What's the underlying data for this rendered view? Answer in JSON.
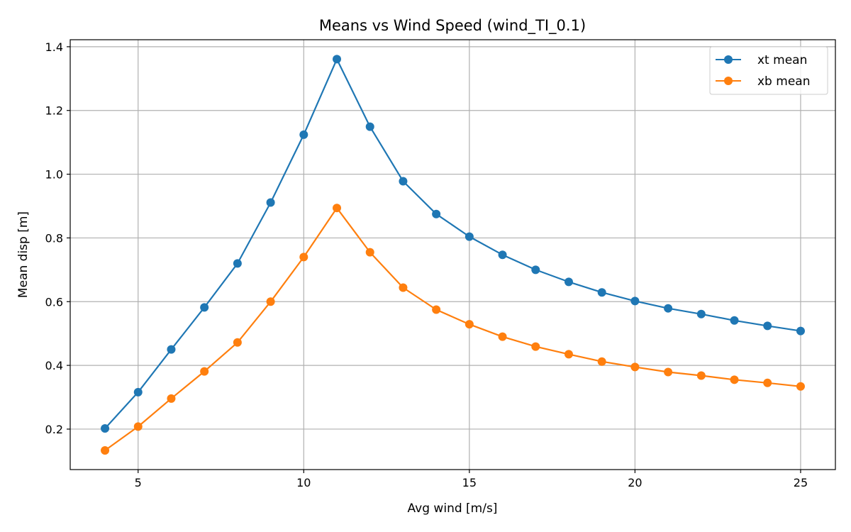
{
  "chart_data": {
    "type": "line",
    "title": "Means vs Wind Speed (wind_TI_0.1)",
    "xlabel": "Avg wind [m/s]",
    "ylabel": "Mean disp [m]",
    "xlim": [
      2.95,
      26.05
    ],
    "ylim": [
      0.073,
      1.422
    ],
    "xticks": [
      5,
      10,
      15,
      20,
      25
    ],
    "yticks": [
      0.2,
      0.4,
      0.6,
      0.8,
      1.0,
      1.2,
      1.4
    ],
    "xtick_labels": [
      "5",
      "10",
      "15",
      "20",
      "25"
    ],
    "ytick_labels": [
      "0.2",
      "0.4",
      "0.6",
      "0.8",
      "1.0",
      "1.2",
      "1.4"
    ],
    "grid": true,
    "legend_position": "top-right",
    "x": [
      4,
      5,
      6,
      7,
      8,
      9,
      10,
      11,
      12,
      13,
      14,
      15,
      16,
      17,
      18,
      19,
      20,
      21,
      22,
      23,
      24,
      25
    ],
    "series": [
      {
        "name": "xt mean",
        "color": "#1f77b4",
        "marker": "circle",
        "values": [
          0.202,
          0.316,
          0.45,
          0.582,
          0.72,
          0.911,
          1.124,
          1.361,
          1.149,
          0.978,
          0.875,
          0.804,
          0.747,
          0.7,
          0.662,
          0.629,
          0.602,
          0.579,
          0.561,
          0.541,
          0.524,
          0.508
        ]
      },
      {
        "name": "xb mean",
        "color": "#ff7f0e",
        "marker": "circle",
        "values": [
          0.133,
          0.208,
          0.296,
          0.381,
          0.472,
          0.6,
          0.74,
          0.894,
          0.755,
          0.644,
          0.575,
          0.529,
          0.49,
          0.459,
          0.435,
          0.412,
          0.395,
          0.379,
          0.368,
          0.355,
          0.345,
          0.334
        ]
      }
    ]
  }
}
